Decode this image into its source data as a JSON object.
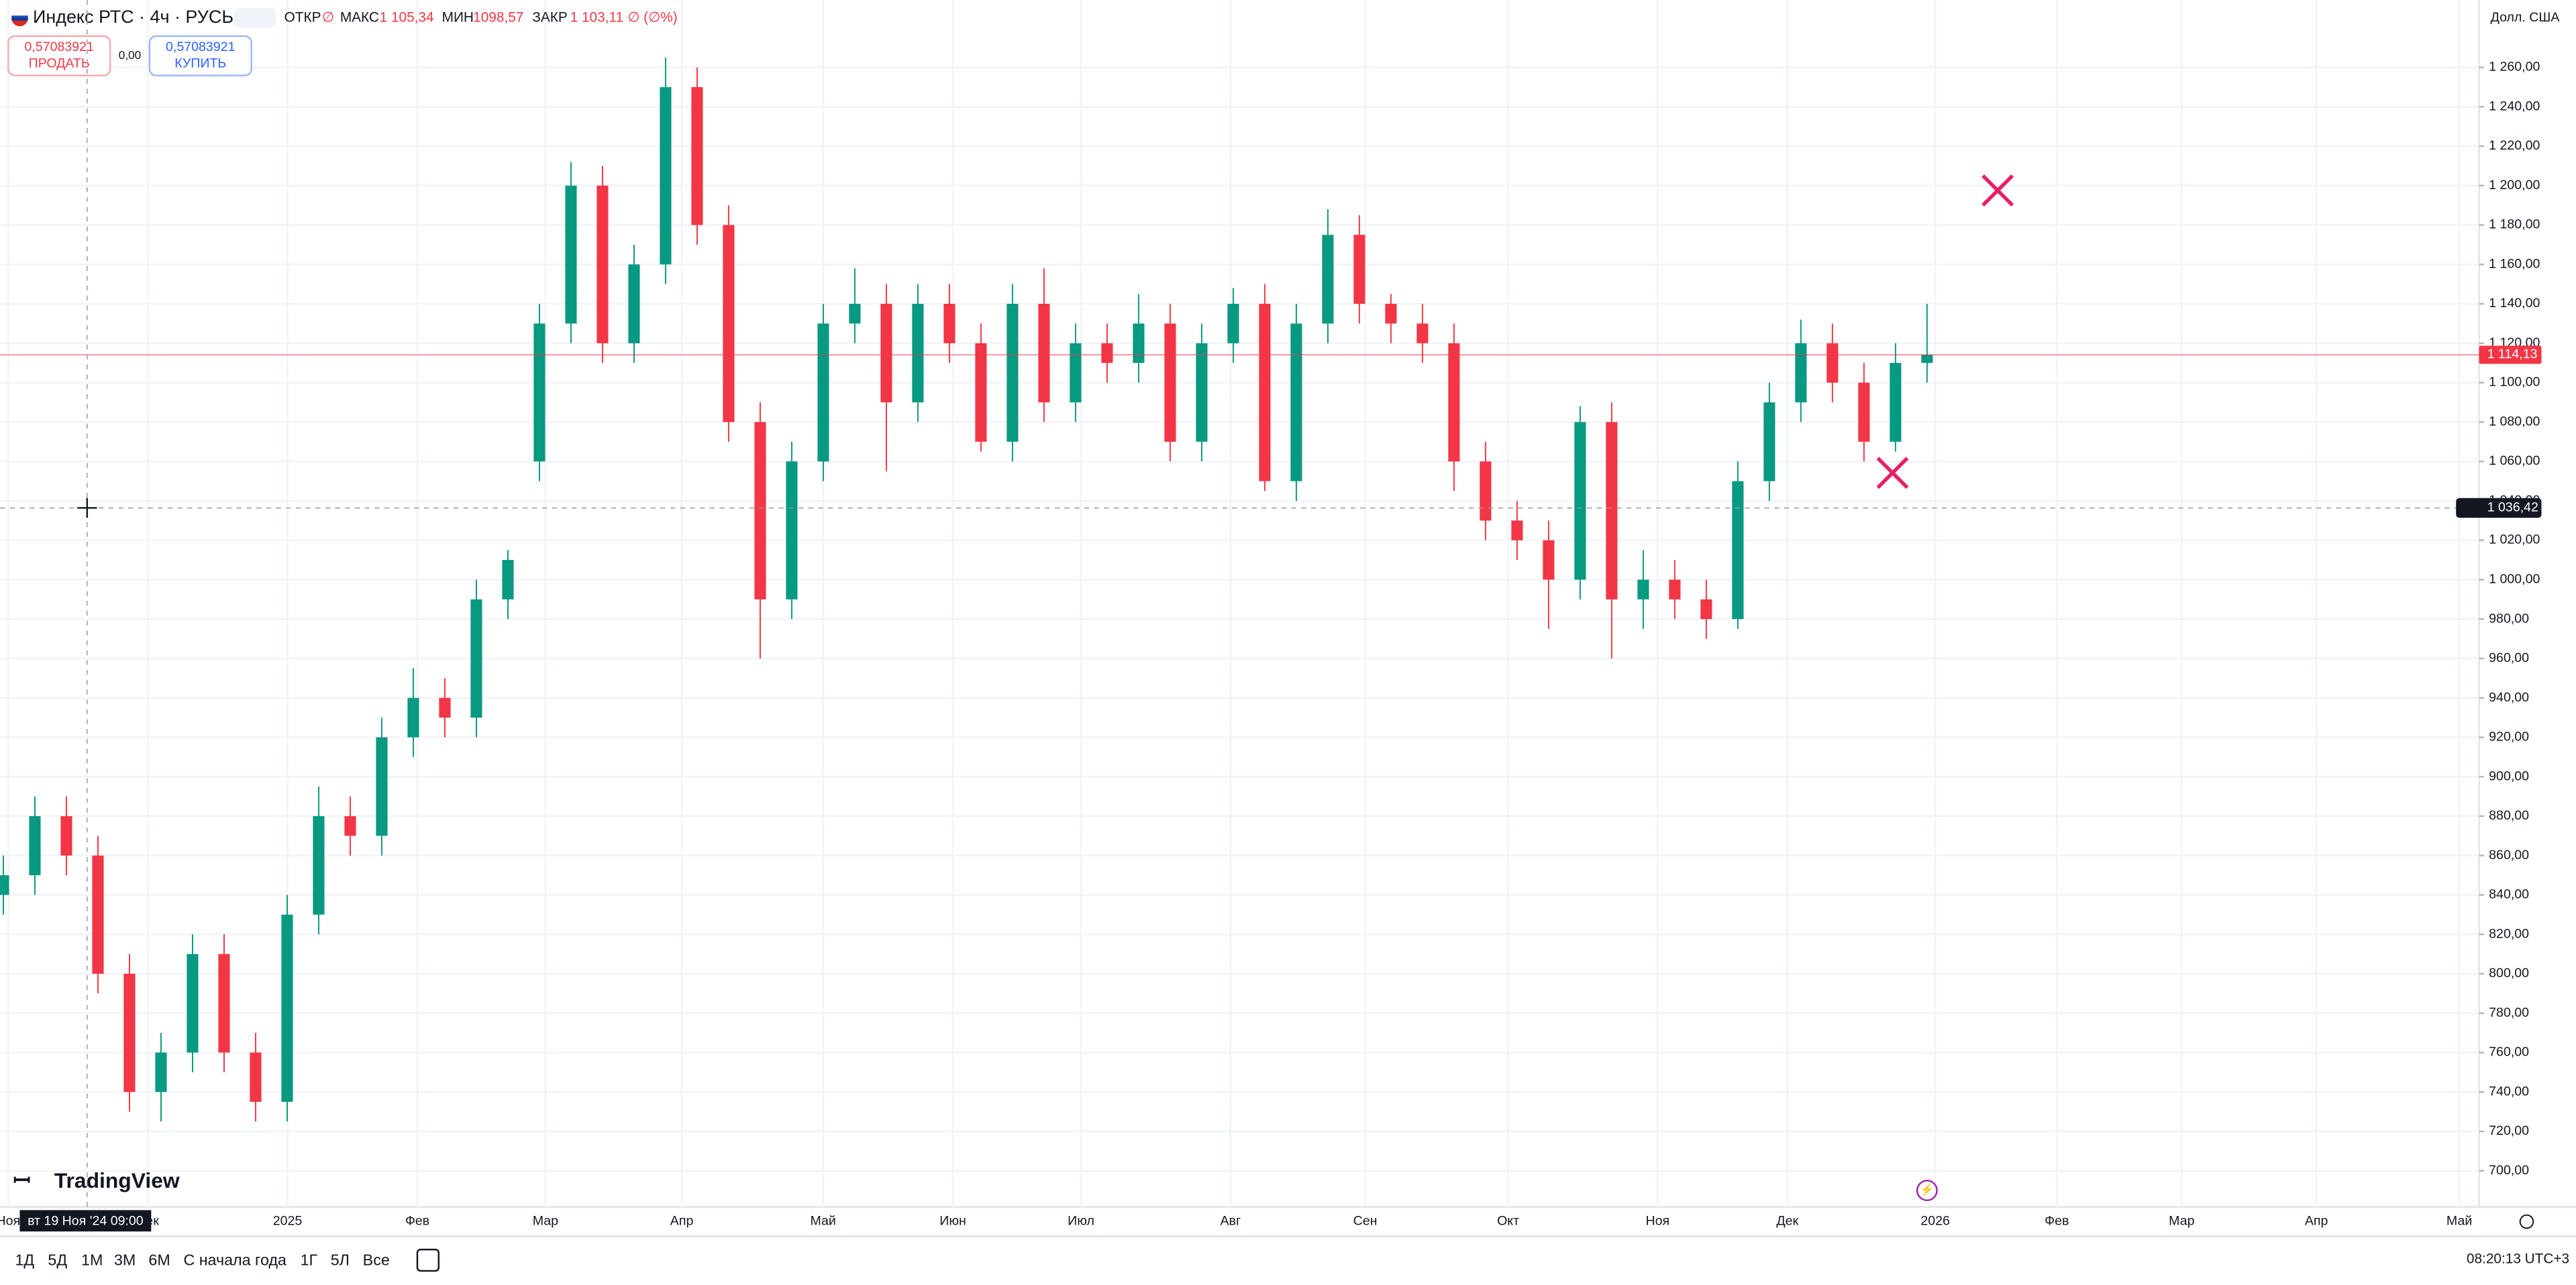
{
  "header": {
    "symbol": "Индекс РТС · 4ч · РУСЬ",
    "open_label": "ОТКР",
    "open_value": "∅",
    "high_label": "МАКС",
    "high_value": "1 105,34",
    "low_label": "МИН",
    "low_value": "1098,57",
    "close_label": "ЗАКР",
    "close_value": "1 103,11",
    "change": "∅ (∅%)"
  },
  "trade": {
    "sell_price": "0,57083921",
    "sell_label": "ПРОДАТЬ",
    "spread": "0,00",
    "buy_price": "0,57083921",
    "buy_label": "КУПИТЬ"
  },
  "currency": "Долл. США",
  "chart_data": {
    "type": "candlestick",
    "open": [
      840,
      850,
      880,
      860,
      800,
      740,
      760,
      810,
      760,
      735,
      830,
      880,
      870,
      920,
      940,
      930,
      990,
      1060,
      1130,
      1200,
      1120,
      1160,
      1250,
      1180,
      1080,
      990,
      1060,
      1130,
      1140,
      1090,
      1140,
      1120,
      1070,
      1140,
      1090,
      1120,
      1110,
      1130,
      1070,
      1120,
      1140,
      1050,
      1130,
      1175,
      1140,
      1130,
      1120,
      1060,
      1030,
      1020,
      1000,
      1080,
      990,
      1000,
      990,
      980,
      1050,
      1090,
      1120,
      1100,
      1070,
      1110
    ],
    "high": [
      860,
      890,
      890,
      870,
      810,
      770,
      820,
      820,
      770,
      840,
      895,
      890,
      930,
      955,
      950,
      1000,
      1015,
      1140,
      1212,
      1210,
      1170,
      1265,
      1260,
      1190,
      1090,
      1070,
      1140,
      1158,
      1150,
      1150,
      1150,
      1130,
      1150,
      1158,
      1130,
      1130,
      1145,
      1140,
      1130,
      1148,
      1150,
      1140,
      1188,
      1185,
      1145,
      1140,
      1130,
      1070,
      1040,
      1030,
      1088,
      1090,
      1015,
      1010,
      1000,
      1060,
      1100,
      1132,
      1130,
      1110,
      1120,
      1140
    ],
    "low": [
      830,
      840,
      850,
      790,
      730,
      725,
      750,
      750,
      725,
      725,
      820,
      860,
      860,
      910,
      920,
      920,
      980,
      1050,
      1120,
      1110,
      1110,
      1150,
      1170,
      1070,
      960,
      980,
      1050,
      1120,
      1055,
      1080,
      1110,
      1065,
      1060,
      1080,
      1080,
      1100,
      1100,
      1060,
      1060,
      1110,
      1045,
      1040,
      1120,
      1130,
      1120,
      1110,
      1045,
      1020,
      1010,
      975,
      990,
      960,
      975,
      980,
      970,
      975,
      1040,
      1080,
      1090,
      1060,
      1065,
      1100
    ],
    "close": [
      850,
      880,
      860,
      800,
      740,
      760,
      810,
      760,
      735,
      830,
      880,
      870,
      920,
      940,
      930,
      990,
      1010,
      1130,
      1200,
      1120,
      1160,
      1250,
      1180,
      1080,
      990,
      1060,
      1130,
      1140,
      1090,
      1140,
      1120,
      1070,
      1140,
      1090,
      1120,
      1110,
      1130,
      1070,
      1120,
      1140,
      1050,
      1130,
      1175,
      1140,
      1130,
      1120,
      1060,
      1030,
      1020,
      1000,
      1080,
      990,
      1000,
      990,
      980,
      1050,
      1090,
      1120,
      1100,
      1070,
      1110,
      1114.13
    ],
    "colors": {
      "up": "#089981",
      "down": "#f23645"
    },
    "ylim": [
      681.7,
      1294.2
    ],
    "yticks": [
      {
        "value": 700,
        "label": "700,00"
      },
      {
        "value": 720,
        "label": "720,00"
      },
      {
        "value": 740,
        "label": "740,00"
      },
      {
        "value": 760,
        "label": "760,00"
      },
      {
        "value": 780,
        "label": "780,00"
      },
      {
        "value": 800,
        "label": "800,00"
      },
      {
        "value": 820,
        "label": "820,00"
      },
      {
        "value": 840,
        "label": "840,00"
      },
      {
        "value": 860,
        "label": "860,00"
      },
      {
        "value": 880,
        "label": "880,00"
      },
      {
        "value": 900,
        "label": "900,00"
      },
      {
        "value": 920,
        "label": "920,00"
      },
      {
        "value": 940,
        "label": "940,00"
      },
      {
        "value": 960,
        "label": "960,00"
      },
      {
        "value": 980,
        "label": "980,00"
      },
      {
        "value": 1000,
        "label": "1 000,00"
      },
      {
        "value": 1020,
        "label": "1 020,00"
      },
      {
        "value": 1040,
        "label": "1 040,00"
      },
      {
        "value": 1060,
        "label": "1 060,00"
      },
      {
        "value": 1080,
        "label": "1 080,00"
      },
      {
        "value": 1100,
        "label": "1 100,00"
      },
      {
        "value": 1120,
        "label": "1 120,00"
      },
      {
        "value": 1140,
        "label": "1 140,00"
      },
      {
        "value": 1160,
        "label": "1 160,00"
      },
      {
        "value": 1180,
        "label": "1 180,00"
      },
      {
        "value": 1200,
        "label": "1 200,00"
      },
      {
        "value": 1220,
        "label": "1 220,00"
      },
      {
        "value": 1240,
        "label": "1 240,00"
      },
      {
        "value": 1260,
        "label": "1 260,00"
      }
    ],
    "grid": true,
    "x_axis_labels": [
      "Ноя",
      "Дек",
      "2025",
      "Фев",
      "Мар",
      "Апр",
      "Май",
      "Июн",
      "Июл",
      "Авг",
      "Сен",
      "Окт",
      "Ноя",
      "Дек",
      "2026",
      "Фев",
      "Мар",
      "Апр",
      "Май"
    ],
    "last_price": {
      "value": 1114.13,
      "label": "1 114,13"
    },
    "crosshair": {
      "price": {
        "value": 1036.42,
        "label": "1 036,42"
      },
      "time": "вт 19 Ноя '24 09:00"
    }
  },
  "brand": "TradingView",
  "timeframes": [
    "1Д",
    "5Д",
    "1М",
    "3М",
    "6М",
    "С начала года",
    "1Г",
    "5Л",
    "Все"
  ],
  "clock": "08:20:13 UTC+3"
}
